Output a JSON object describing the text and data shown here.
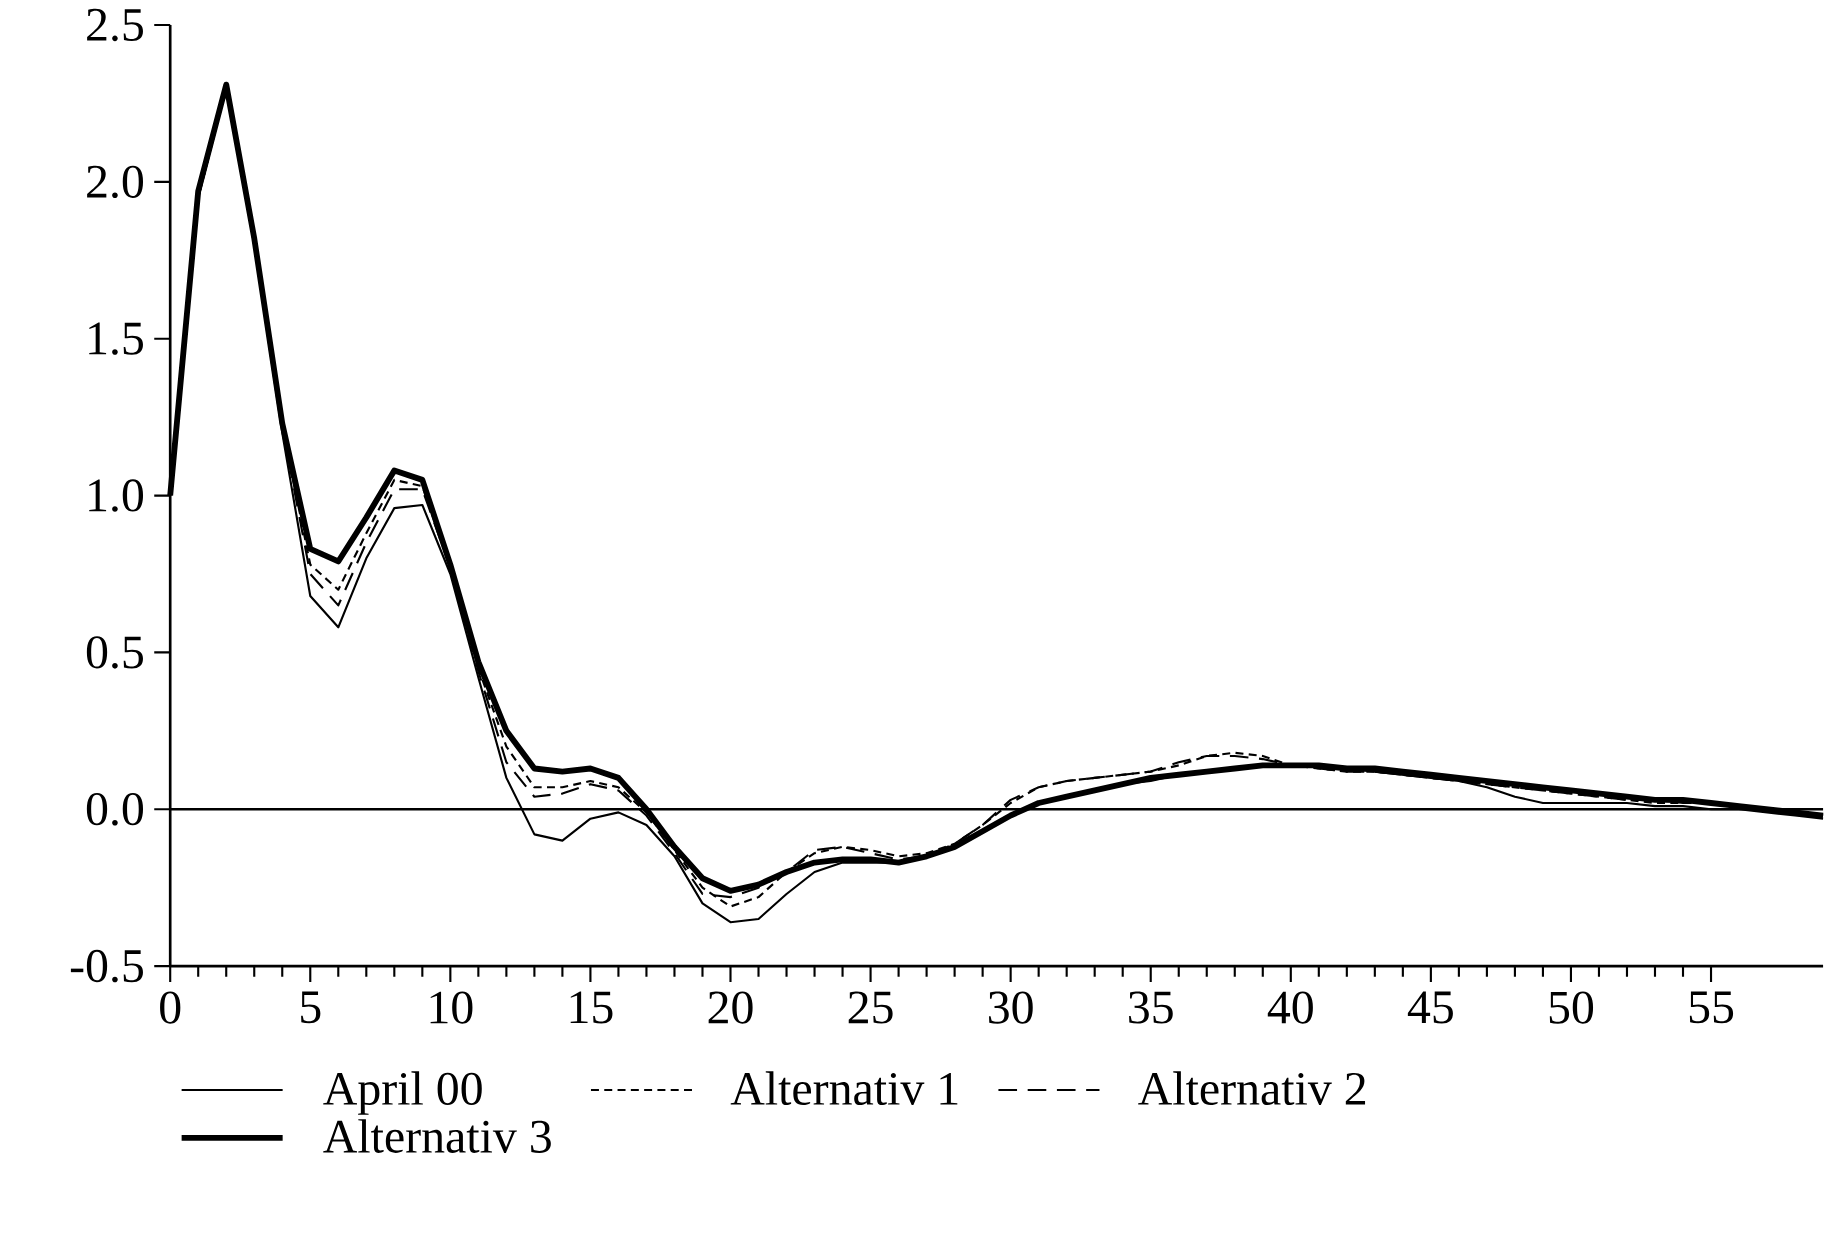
{
  "chart_data": {
    "type": "line",
    "x": [
      0,
      1,
      2,
      3,
      4,
      5,
      6,
      7,
      8,
      9,
      10,
      11,
      12,
      13,
      14,
      15,
      16,
      17,
      18,
      19,
      20,
      21,
      22,
      23,
      24,
      25,
      26,
      27,
      28,
      29,
      30,
      31,
      32,
      33,
      34,
      35,
      36,
      37,
      38,
      39,
      40,
      41,
      42,
      43,
      44,
      45,
      46,
      47,
      48,
      49,
      50,
      51,
      52,
      53,
      54,
      55,
      56,
      57,
      58,
      59
    ],
    "series": [
      {
        "name": "April 00",
        "color": "#000000",
        "line_style": "solid",
        "values": [
          1.0,
          1.95,
          2.3,
          1.8,
          1.2,
          0.68,
          0.58,
          0.8,
          0.96,
          0.97,
          0.75,
          0.42,
          0.1,
          -0.08,
          -0.1,
          -0.03,
          -0.01,
          -0.05,
          -0.15,
          -0.3,
          -0.36,
          -0.35,
          -0.27,
          -0.2,
          -0.17,
          -0.17,
          -0.17,
          -0.15,
          -0.12,
          -0.07,
          -0.02,
          0.02,
          0.04,
          0.06,
          0.08,
          0.09,
          0.11,
          0.12,
          0.13,
          0.14,
          0.14,
          0.14,
          0.13,
          0.12,
          0.11,
          0.1,
          0.09,
          0.07,
          0.04,
          0.02,
          0.02,
          0.02,
          0.02,
          0.01,
          0.01,
          0.0,
          0.0,
          -0.01,
          -0.02,
          -0.03
        ]
      },
      {
        "name": "Alternativ 1",
        "color": "#000000",
        "line_style": "dotted",
        "values": [
          1.0,
          1.95,
          2.3,
          1.8,
          1.22,
          0.78,
          0.7,
          0.88,
          1.05,
          1.03,
          0.77,
          0.45,
          0.2,
          0.07,
          0.07,
          0.09,
          0.07,
          -0.01,
          -0.13,
          -0.25,
          -0.31,
          -0.28,
          -0.2,
          -0.14,
          -0.12,
          -0.13,
          -0.15,
          -0.14,
          -0.11,
          -0.05,
          0.02,
          0.07,
          0.09,
          0.1,
          0.11,
          0.12,
          0.14,
          0.17,
          0.18,
          0.17,
          0.14,
          0.13,
          0.12,
          0.12,
          0.11,
          0.1,
          0.09,
          0.08,
          0.07,
          0.06,
          0.05,
          0.04,
          0.03,
          0.02,
          0.02,
          0.02,
          0.01,
          0.0,
          -0.01,
          -0.02
        ]
      },
      {
        "name": "Alternativ 2",
        "color": "#000000",
        "line_style": "dashed",
        "values": [
          1.0,
          1.95,
          2.3,
          1.8,
          1.22,
          0.75,
          0.65,
          0.85,
          1.02,
          1.02,
          0.77,
          0.44,
          0.15,
          0.04,
          0.05,
          0.08,
          0.06,
          -0.02,
          -0.14,
          -0.27,
          -0.28,
          -0.25,
          -0.2,
          -0.13,
          -0.12,
          -0.14,
          -0.16,
          -0.15,
          -0.11,
          -0.05,
          0.03,
          0.07,
          0.09,
          0.1,
          0.11,
          0.12,
          0.15,
          0.17,
          0.17,
          0.16,
          0.14,
          0.13,
          0.12,
          0.12,
          0.11,
          0.1,
          0.09,
          0.08,
          0.07,
          0.06,
          0.05,
          0.04,
          0.03,
          0.03,
          0.02,
          0.02,
          0.01,
          0.0,
          -0.01,
          -0.02
        ]
      },
      {
        "name": "Alternativ 3",
        "color": "#000000",
        "line_style": "solid",
        "values": [
          1.0,
          1.97,
          2.31,
          1.82,
          1.23,
          0.83,
          0.79,
          0.93,
          1.08,
          1.05,
          0.78,
          0.47,
          0.25,
          0.13,
          0.12,
          0.13,
          0.1,
          0.0,
          -0.12,
          -0.22,
          -0.26,
          -0.24,
          -0.2,
          -0.17,
          -0.16,
          -0.16,
          -0.17,
          -0.15,
          -0.12,
          -0.07,
          -0.02,
          0.02,
          0.04,
          0.06,
          0.08,
          0.1,
          0.11,
          0.12,
          0.13,
          0.14,
          0.14,
          0.14,
          0.13,
          0.13,
          0.12,
          0.11,
          0.1,
          0.09,
          0.08,
          0.07,
          0.06,
          0.05,
          0.04,
          0.03,
          0.03,
          0.02,
          0.01,
          0.0,
          -0.01,
          -0.02
        ]
      }
    ],
    "xlim": [
      0,
      59
    ],
    "xticks": [
      0,
      5,
      10,
      15,
      20,
      25,
      30,
      35,
      40,
      45,
      50,
      55
    ],
    "ylim": [
      -0.5,
      2.5
    ],
    "yticks": [
      {
        "value": -0.5,
        "label": "-0.5"
      },
      {
        "value": 0,
        "label": "0.0"
      },
      {
        "value": 0.5,
        "label": "0.5"
      },
      {
        "value": 1,
        "label": "1.0"
      },
      {
        "value": 1.5,
        "label": "1.5"
      },
      {
        "value": 2,
        "label": "2.0"
      },
      {
        "value": 2.5,
        "label": "2.5"
      }
    ],
    "ref_lines": [
      {
        "axis": "y",
        "value": 0,
        "color": "#000000",
        "line_style": "solid"
      }
    ],
    "grid": false,
    "legend": "bottom"
  }
}
